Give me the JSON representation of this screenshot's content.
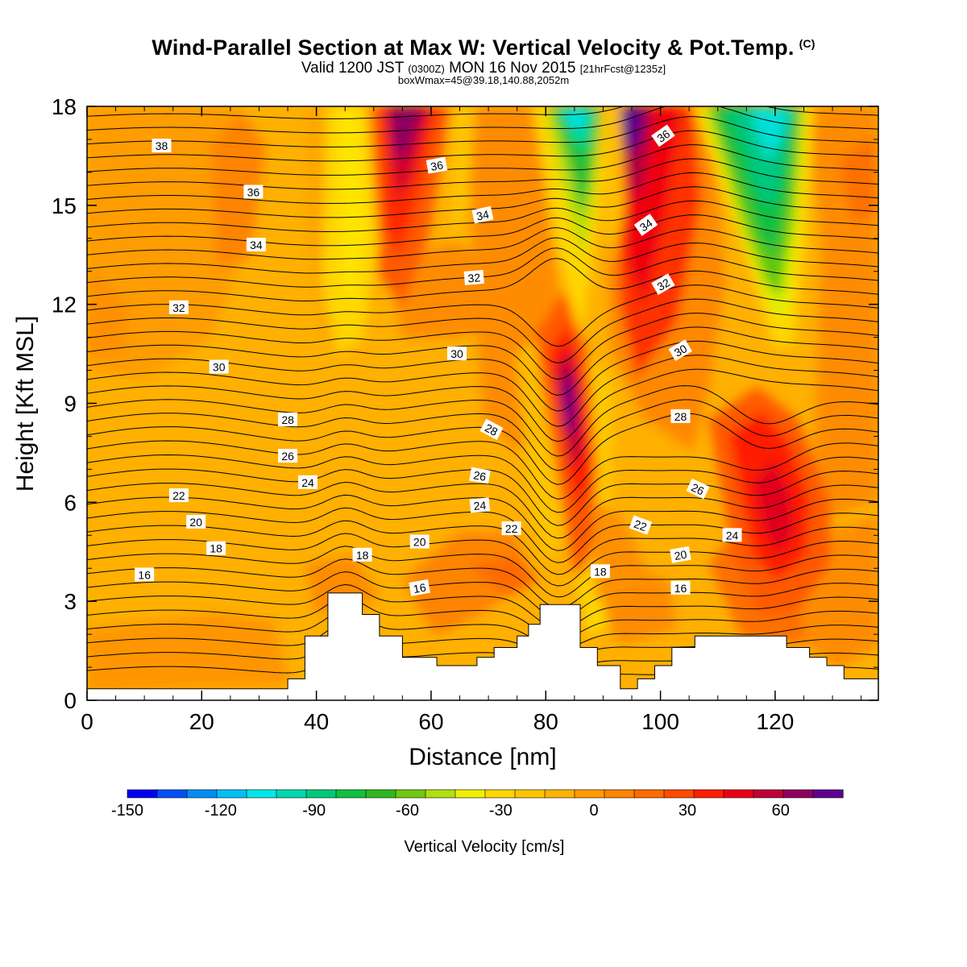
{
  "header": {
    "title": "Wind-Parallel Section at Max W: Vertical Velocity & Pot.Temp.",
    "copyright_mark": "(C)",
    "valid_prefix": "Valid 1200 JST",
    "valid_utc": "(0300Z)",
    "valid_date": "MON 16 Nov 2015",
    "forecast_info": "[21hrFcst@1235z]",
    "box_info": "boxWmax=45@39.18,140.88,2052m"
  },
  "chart_data": {
    "type": "heatmap",
    "xlabel": "Distance [nm]",
    "ylabel": "Height [Kft MSL]",
    "xlim": [
      0,
      138
    ],
    "ylim": [
      0,
      18
    ],
    "x_ticks": [
      "0",
      "20",
      "40",
      "60",
      "80",
      "100",
      "120"
    ],
    "y_ticks": [
      "0",
      "3",
      "6",
      "9",
      "12",
      "15",
      "18"
    ],
    "colorbar": {
      "label": "Vertical Velocity [cm/s]",
      "range": [
        -150,
        80
      ],
      "tick_labels": [
        "-150",
        "-120",
        "-90",
        "-60",
        "-30",
        "0",
        "30",
        "60"
      ],
      "colors": [
        "#0000f0",
        "#0050f5",
        "#008cf5",
        "#00c0f5",
        "#00e8e8",
        "#00d8b0",
        "#00c878",
        "#10c040",
        "#30b820",
        "#70c810",
        "#b0e010",
        "#f0f000",
        "#ffd700",
        "#ffc400",
        "#ffb300",
        "#ff9c00",
        "#ff8400",
        "#ff6a00",
        "#ff4a00",
        "#ff1e00",
        "#e80018",
        "#c00038",
        "#900060",
        "#600090"
      ]
    },
    "terrain": [
      [
        0,
        0.35
      ],
      [
        35,
        0.35
      ],
      [
        35,
        0.65
      ],
      [
        38,
        0.65
      ],
      [
        38,
        1.95
      ],
      [
        42,
        1.95
      ],
      [
        42,
        3.25
      ],
      [
        48,
        3.25
      ],
      [
        48,
        2.6
      ],
      [
        51,
        2.6
      ],
      [
        51,
        1.95
      ],
      [
        55,
        1.95
      ],
      [
        55,
        1.3
      ],
      [
        61,
        1.3
      ],
      [
        61,
        1.05
      ],
      [
        68,
        1.05
      ],
      [
        68,
        1.3
      ],
      [
        71,
        1.3
      ],
      [
        71,
        1.6
      ],
      [
        75,
        1.6
      ],
      [
        75,
        1.95
      ],
      [
        77,
        1.95
      ],
      [
        77,
        2.3
      ],
      [
        79,
        2.3
      ],
      [
        79,
        2.9
      ],
      [
        86,
        2.9
      ],
      [
        86,
        1.6
      ],
      [
        89,
        1.6
      ],
      [
        89,
        1.05
      ],
      [
        93,
        1.05
      ],
      [
        93,
        0.35
      ],
      [
        96,
        0.35
      ],
      [
        96,
        0.65
      ],
      [
        99,
        0.65
      ],
      [
        99,
        1.05
      ],
      [
        102,
        1.05
      ],
      [
        102,
        1.6
      ],
      [
        106,
        1.6
      ],
      [
        106,
        1.95
      ],
      [
        122,
        1.95
      ],
      [
        122,
        1.6
      ],
      [
        126,
        1.6
      ],
      [
        126,
        1.3
      ],
      [
        129,
        1.3
      ],
      [
        129,
        1.05
      ],
      [
        132,
        1.05
      ],
      [
        132,
        0.65
      ],
      [
        138,
        0.65
      ]
    ],
    "theta_contour_labels": [
      {
        "text": "38",
        "x": 13,
        "y": 16.8,
        "rot": 0
      },
      {
        "text": "36",
        "x": 29,
        "y": 15.4,
        "rot": 0
      },
      {
        "text": "34",
        "x": 29.5,
        "y": 13.8,
        "rot": 0
      },
      {
        "text": "32",
        "x": 16,
        "y": 11.9,
        "rot": 0
      },
      {
        "text": "30",
        "x": 23,
        "y": 10.1,
        "rot": 0
      },
      {
        "text": "28",
        "x": 35,
        "y": 8.5,
        "rot": 0
      },
      {
        "text": "26",
        "x": 35,
        "y": 7.4,
        "rot": 0
      },
      {
        "text": "24",
        "x": 38.5,
        "y": 6.6,
        "rot": 0
      },
      {
        "text": "22",
        "x": 16,
        "y": 6.2,
        "rot": 0
      },
      {
        "text": "20",
        "x": 19,
        "y": 5.4,
        "rot": 0
      },
      {
        "text": "18",
        "x": 22.5,
        "y": 4.6,
        "rot": 0
      },
      {
        "text": "16",
        "x": 10,
        "y": 3.8,
        "rot": 0
      },
      {
        "text": "36",
        "x": 61,
        "y": 16.2,
        "rot": -10
      },
      {
        "text": "34",
        "x": 69,
        "y": 14.7,
        "rot": -12
      },
      {
        "text": "32",
        "x": 67.5,
        "y": 12.8,
        "rot": -5
      },
      {
        "text": "30",
        "x": 64.5,
        "y": 10.5,
        "rot": 0
      },
      {
        "text": "28",
        "x": 70.5,
        "y": 8.2,
        "rot": 28
      },
      {
        "text": "26",
        "x": 68.5,
        "y": 6.8,
        "rot": 10
      },
      {
        "text": "24",
        "x": 68.5,
        "y": 5.9,
        "rot": -5
      },
      {
        "text": "22",
        "x": 74,
        "y": 5.2,
        "rot": 0
      },
      {
        "text": "20",
        "x": 58,
        "y": 4.8,
        "rot": 0
      },
      {
        "text": "18",
        "x": 48,
        "y": 4.4,
        "rot": 0
      },
      {
        "text": "16",
        "x": 58,
        "y": 3.4,
        "rot": -10
      },
      {
        "text": "36",
        "x": 100.5,
        "y": 17.1,
        "rot": -35
      },
      {
        "text": "34",
        "x": 97.5,
        "y": 14.4,
        "rot": -35
      },
      {
        "text": "32",
        "x": 100.5,
        "y": 12.6,
        "rot": -30
      },
      {
        "text": "30",
        "x": 103.5,
        "y": 10.6,
        "rot": -30
      },
      {
        "text": "28",
        "x": 103.5,
        "y": 8.6,
        "rot": 0
      },
      {
        "text": "26",
        "x": 106.5,
        "y": 6.4,
        "rot": 25
      },
      {
        "text": "24",
        "x": 112.5,
        "y": 5.0,
        "rot": 0
      },
      {
        "text": "22",
        "x": 96.5,
        "y": 5.3,
        "rot": 20
      },
      {
        "text": "20",
        "x": 103.5,
        "y": 4.4,
        "rot": -10
      },
      {
        "text": "18",
        "x": 89.5,
        "y": 3.9,
        "rot": 0
      },
      {
        "text": "16",
        "x": 103.5,
        "y": 3.4,
        "rot": 0
      }
    ]
  }
}
